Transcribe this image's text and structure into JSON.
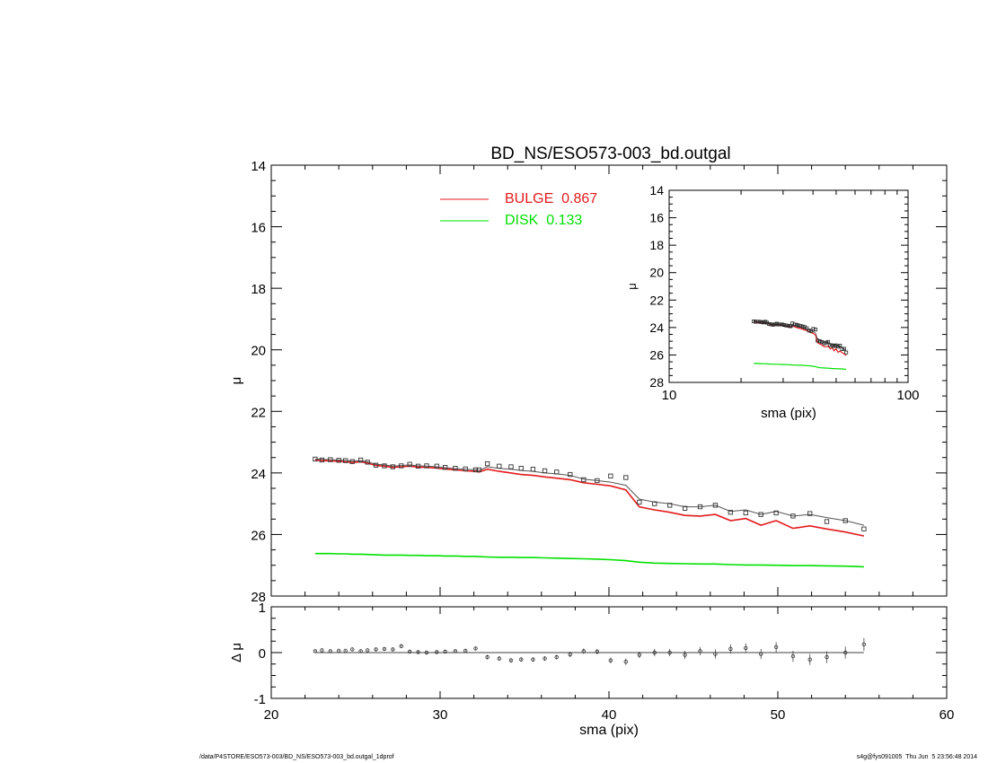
{
  "title": "BD_NS/ESO573-003_bd.outgal",
  "footer_left": "/data/P4STORE/ESO573-003/BD_NS/ESO573-003_bd.outgal_1dprof",
  "footer_right": "s4g@fys091005  Thu Jun  5 23:56:48 2014",
  "colors": {
    "bulge": "#e41a1c",
    "disk": "#00e000",
    "model": "#555555",
    "axis": "#000000"
  },
  "chart_data": [
    {
      "type": "line",
      "panel": "main",
      "xlabel": "",
      "ylabel": "μ",
      "xlim": [
        20,
        60
      ],
      "ylim": [
        28,
        14
      ],
      "y_inverted": true,
      "xticks": [
        20,
        30,
        40,
        50,
        60
      ],
      "yticks": [
        14,
        16,
        18,
        20,
        22,
        24,
        26,
        28
      ],
      "legend_position": "top",
      "legend": [
        {
          "name": "BULGE  0.867",
          "color": "#e41a1c"
        },
        {
          "name": "DISK  0.133",
          "color": "#00e000"
        }
      ],
      "x": [
        22.6,
        23.0,
        23.5,
        24.0,
        24.4,
        24.8,
        25.3,
        25.7,
        26.2,
        26.7,
        27.2,
        27.7,
        28.2,
        28.7,
        29.2,
        29.8,
        30.3,
        30.9,
        31.5,
        32.1,
        32.3,
        32.8,
        33.5,
        34.2,
        34.8,
        35.5,
        36.2,
        36.9,
        37.7,
        38.5,
        39.3,
        40.1,
        41.0,
        41.8,
        42.7,
        43.6,
        44.5,
        45.4,
        46.3,
        47.2,
        48.1,
        49.0,
        49.9,
        50.9,
        51.9,
        52.9,
        54.0,
        55.1
      ],
      "series": [
        {
          "name": "data",
          "marker": "square",
          "values": [
            23.55,
            23.58,
            23.57,
            23.59,
            23.6,
            23.63,
            23.58,
            23.65,
            23.75,
            23.77,
            23.8,
            23.77,
            23.72,
            23.78,
            23.77,
            23.78,
            23.82,
            23.85,
            23.87,
            23.9,
            23.9,
            23.7,
            23.78,
            23.8,
            23.85,
            23.88,
            23.93,
            23.97,
            24.05,
            24.22,
            24.25,
            24.1,
            24.15,
            24.95,
            25.0,
            25.05,
            25.15,
            25.1,
            25.05,
            25.28,
            25.3,
            25.35,
            25.3,
            25.4,
            25.32,
            25.58,
            25.55,
            25.82
          ]
        },
        {
          "name": "model",
          "values": [
            23.55,
            23.56,
            23.57,
            23.58,
            23.6,
            23.62,
            23.6,
            23.64,
            23.72,
            23.74,
            23.78,
            23.76,
            23.74,
            23.77,
            23.78,
            23.8,
            23.83,
            23.86,
            23.88,
            23.9,
            23.92,
            23.8,
            23.85,
            23.88,
            23.92,
            23.95,
            24.0,
            24.03,
            24.08,
            24.2,
            24.25,
            24.3,
            24.4,
            24.85,
            24.95,
            25.0,
            25.1,
            25.1,
            25.05,
            25.25,
            25.2,
            25.35,
            25.25,
            25.4,
            25.35,
            25.45,
            25.55,
            25.7
          ]
        },
        {
          "name": "bulge",
          "values": [
            23.58,
            23.6,
            23.61,
            23.62,
            23.64,
            23.66,
            23.64,
            23.68,
            23.76,
            23.78,
            23.82,
            23.8,
            23.78,
            23.81,
            23.82,
            23.84,
            23.87,
            23.9,
            23.93,
            23.95,
            23.97,
            23.88,
            23.95,
            24.0,
            24.05,
            24.08,
            24.13,
            24.17,
            24.22,
            24.32,
            24.37,
            24.42,
            24.55,
            25.1,
            25.2,
            25.28,
            25.38,
            25.4,
            25.35,
            25.55,
            25.48,
            25.7,
            25.55,
            25.8,
            25.72,
            25.82,
            25.92,
            26.05
          ]
        },
        {
          "name": "disk",
          "values": [
            26.62,
            26.62,
            26.62,
            26.63,
            26.63,
            26.64,
            26.64,
            26.65,
            26.66,
            26.67,
            26.67,
            26.67,
            26.68,
            26.68,
            26.69,
            26.69,
            26.7,
            26.7,
            26.71,
            26.71,
            26.72,
            26.73,
            26.74,
            26.74,
            26.75,
            26.75,
            26.76,
            26.77,
            26.78,
            26.79,
            26.8,
            26.82,
            26.85,
            26.9,
            26.93,
            26.94,
            26.95,
            26.96,
            26.96,
            26.98,
            26.99,
            26.99,
            27.0,
            27.01,
            27.01,
            27.02,
            27.03,
            27.05
          ]
        }
      ]
    },
    {
      "type": "scatter",
      "panel": "residual",
      "xlabel": "sma (pix)",
      "ylabel": "Δ μ",
      "xlim": [
        20,
        60
      ],
      "ylim": [
        -1,
        1
      ],
      "xticks": [
        20,
        30,
        40,
        50,
        60
      ],
      "yticks": [
        -1,
        0,
        1
      ],
      "x": [
        22.6,
        23.0,
        23.5,
        24.0,
        24.4,
        24.8,
        25.3,
        25.7,
        26.2,
        26.7,
        27.2,
        27.7,
        28.2,
        28.7,
        29.2,
        29.8,
        30.3,
        30.9,
        31.5,
        32.1,
        32.8,
        33.5,
        34.2,
        34.8,
        35.5,
        36.2,
        36.9,
        37.7,
        38.5,
        39.3,
        40.1,
        41.0,
        41.8,
        42.7,
        43.6,
        44.5,
        45.4,
        46.3,
        47.2,
        48.1,
        49.0,
        49.9,
        50.9,
        51.9,
        52.9,
        54.0,
        55.1
      ],
      "values": [
        0.03,
        0.05,
        0.03,
        0.04,
        0.04,
        0.07,
        0.03,
        0.05,
        0.07,
        0.08,
        0.07,
        0.14,
        0.02,
        0.01,
        0.0,
        0.01,
        0.02,
        0.03,
        0.04,
        0.09,
        -0.1,
        -0.13,
        -0.17,
        -0.15,
        -0.15,
        -0.13,
        -0.1,
        -0.04,
        0.03,
        0.02,
        -0.17,
        -0.2,
        -0.05,
        0.0,
        0.0,
        -0.05,
        0.03,
        -0.03,
        0.08,
        0.1,
        -0.03,
        0.12,
        -0.08,
        -0.15,
        -0.1,
        0.0,
        0.18
      ],
      "errors": [
        0.02,
        0.02,
        0.02,
        0.02,
        0.02,
        0.02,
        0.02,
        0.02,
        0.03,
        0.03,
        0.03,
        0.03,
        0.03,
        0.03,
        0.03,
        0.03,
        0.03,
        0.03,
        0.04,
        0.04,
        0.05,
        0.05,
        0.05,
        0.05,
        0.05,
        0.05,
        0.05,
        0.06,
        0.06,
        0.06,
        0.06,
        0.07,
        0.07,
        0.08,
        0.08,
        0.09,
        0.09,
        0.1,
        0.1,
        0.1,
        0.11,
        0.11,
        0.12,
        0.12,
        0.13,
        0.13,
        0.14
      ]
    },
    {
      "type": "line",
      "panel": "inset",
      "xlabel": "sma (pix)",
      "ylabel": "μ",
      "x_scale": "log",
      "xlim": [
        10,
        100
      ],
      "ylim": [
        28,
        14
      ],
      "y_inverted": true,
      "xticks": [
        10,
        100
      ],
      "yticks": [
        14,
        16,
        18,
        20,
        22,
        24,
        26,
        28
      ]
    }
  ]
}
